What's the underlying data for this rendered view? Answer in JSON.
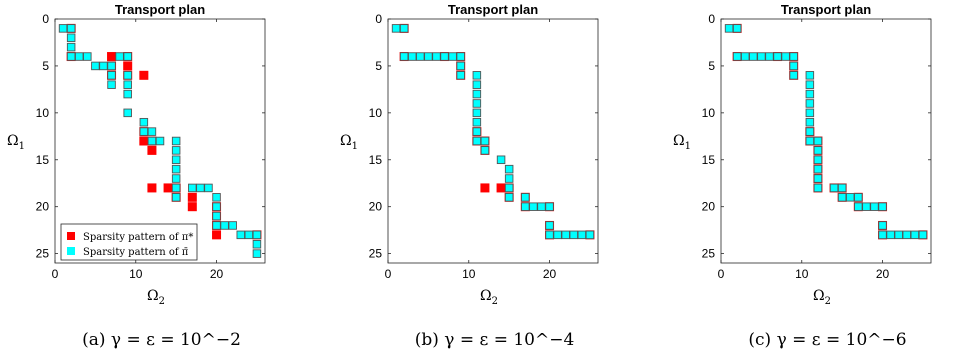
{
  "chart_data": [
    {
      "type": "scatter",
      "title": "Transport plan",
      "xlabel": "Ω",
      "xlabel_sub": "2",
      "ylabel": "Ω",
      "ylabel_sub": "1",
      "xlim": [
        0,
        26
      ],
      "ylim": [
        0,
        26
      ],
      "y_reversed": true,
      "xticks": [
        "0",
        "10",
        "20"
      ],
      "yticks": [
        "0",
        "5",
        "10",
        "15",
        "20",
        "25"
      ],
      "grid": false,
      "legend": {
        "position": "bottom-left",
        "items": [
          {
            "label": "Sparsity pattern of π*",
            "color": "#ff0000"
          },
          {
            "label": "Sparsity pattern of π̄",
            "color": "#00ffff"
          }
        ]
      },
      "series": [
        {
          "name": "Sparsity pattern of π*",
          "color": "#ff0000",
          "points": [
            [
              2,
              1
            ],
            [
              2,
              4
            ],
            [
              7,
              4
            ],
            [
              9,
              4
            ],
            [
              7,
              5
            ],
            [
              9,
              5
            ],
            [
              7,
              6
            ],
            [
              9,
              6
            ],
            [
              11,
              6
            ],
            [
              11,
              12
            ],
            [
              11,
              13
            ],
            [
              12,
              13
            ],
            [
              12,
              14
            ],
            [
              12,
              18
            ],
            [
              14,
              18
            ],
            [
              15,
              18
            ],
            [
              15,
              19
            ],
            [
              17,
              19
            ],
            [
              17,
              20
            ],
            [
              20,
              20
            ],
            [
              20,
              21
            ],
            [
              20,
              22
            ],
            [
              20,
              23
            ],
            [
              25,
              23
            ]
          ]
        },
        {
          "name": "Sparsity pattern of π̄",
          "color": "#00ffff",
          "points": [
            [
              1,
              1
            ],
            [
              2,
              1
            ],
            [
              2,
              2
            ],
            [
              2,
              3
            ],
            [
              2,
              4
            ],
            [
              3,
              4
            ],
            [
              4,
              4
            ],
            [
              5,
              5
            ],
            [
              6,
              5
            ],
            [
              7,
              5
            ],
            [
              7,
              6
            ],
            [
              7,
              7
            ],
            [
              8,
              4
            ],
            [
              9,
              4
            ],
            [
              9,
              6
            ],
            [
              9,
              7
            ],
            [
              9,
              8
            ],
            [
              9,
              10
            ],
            [
              11,
              11
            ],
            [
              11,
              12
            ],
            [
              12,
              12
            ],
            [
              12,
              13
            ],
            [
              13,
              13
            ],
            [
              15,
              13
            ],
            [
              15,
              14
            ],
            [
              15,
              15
            ],
            [
              15,
              16
            ],
            [
              15,
              17
            ],
            [
              15,
              18
            ],
            [
              15,
              19
            ],
            [
              17,
              18
            ],
            [
              18,
              18
            ],
            [
              19,
              18
            ],
            [
              20,
              19
            ],
            [
              20,
              20
            ],
            [
              20,
              21
            ],
            [
              20,
              22
            ],
            [
              21,
              22
            ],
            [
              22,
              22
            ],
            [
              23,
              23
            ],
            [
              24,
              23
            ],
            [
              25,
              23
            ],
            [
              25,
              24
            ],
            [
              25,
              25
            ]
          ]
        }
      ],
      "caption": "(a) γ = ε = 10^−2"
    },
    {
      "type": "scatter",
      "title": "Transport plan",
      "xlabel": "Ω",
      "xlabel_sub": "2",
      "ylabel": "Ω",
      "ylabel_sub": "1",
      "xlim": [
        0,
        26
      ],
      "ylim": [
        0,
        26
      ],
      "y_reversed": true,
      "xticks": [
        "0",
        "10",
        "20"
      ],
      "yticks": [
        "0",
        "5",
        "10",
        "15",
        "20",
        "25"
      ],
      "grid": false,
      "series": [
        {
          "name": "Sparsity pattern of π*",
          "color": "#ff0000",
          "points": [
            [
              2,
              1
            ],
            [
              2,
              4
            ],
            [
              7,
              4
            ],
            [
              9,
              4
            ],
            [
              9,
              5
            ],
            [
              9,
              6
            ],
            [
              11,
              12
            ],
            [
              11,
              13
            ],
            [
              12,
              13
            ],
            [
              12,
              14
            ],
            [
              12,
              18
            ],
            [
              14,
              18
            ],
            [
              15,
              18
            ],
            [
              15,
              19
            ],
            [
              17,
              19
            ],
            [
              17,
              20
            ],
            [
              20,
              20
            ],
            [
              20,
              22
            ],
            [
              20,
              23
            ],
            [
              25,
              23
            ]
          ]
        },
        {
          "name": "Sparsity pattern of π̄",
          "color": "#00ffff",
          "points": [
            [
              1,
              1
            ],
            [
              2,
              1
            ],
            [
              2,
              4
            ],
            [
              3,
              4
            ],
            [
              4,
              4
            ],
            [
              5,
              4
            ],
            [
              6,
              4
            ],
            [
              7,
              4
            ],
            [
              8,
              4
            ],
            [
              9,
              4
            ],
            [
              9,
              5
            ],
            [
              9,
              6
            ],
            [
              11,
              6
            ],
            [
              11,
              7
            ],
            [
              11,
              8
            ],
            [
              11,
              9
            ],
            [
              11,
              10
            ],
            [
              11,
              11
            ],
            [
              11,
              12
            ],
            [
              11,
              13
            ],
            [
              12,
              13
            ],
            [
              12,
              14
            ],
            [
              14,
              15
            ],
            [
              15,
              16
            ],
            [
              15,
              17
            ],
            [
              15,
              18
            ],
            [
              15,
              19
            ],
            [
              17,
              19
            ],
            [
              17,
              20
            ],
            [
              18,
              20
            ],
            [
              19,
              20
            ],
            [
              20,
              20
            ],
            [
              20,
              22
            ],
            [
              20,
              23
            ],
            [
              21,
              23
            ],
            [
              22,
              23
            ],
            [
              23,
              23
            ],
            [
              24,
              23
            ],
            [
              25,
              23
            ]
          ]
        }
      ],
      "caption": "(b) γ = ε = 10^−4"
    },
    {
      "type": "scatter",
      "title": "Transport plan",
      "xlabel": "Ω",
      "xlabel_sub": "2",
      "ylabel": "Ω",
      "ylabel_sub": "1",
      "xlim": [
        0,
        26
      ],
      "ylim": [
        0,
        26
      ],
      "y_reversed": true,
      "xticks": [
        "0",
        "10",
        "20"
      ],
      "yticks": [
        "0",
        "5",
        "10",
        "15",
        "20",
        "25"
      ],
      "grid": false,
      "series": [
        {
          "name": "Sparsity pattern of π*",
          "color": "#ff0000",
          "points": [
            [
              2,
              1
            ],
            [
              2,
              4
            ],
            [
              7,
              4
            ],
            [
              9,
              4
            ],
            [
              9,
              5
            ],
            [
              9,
              6
            ],
            [
              11,
              12
            ],
            [
              11,
              13
            ],
            [
              12,
              13
            ],
            [
              12,
              14
            ],
            [
              12,
              15
            ],
            [
              12,
              16
            ],
            [
              12,
              17
            ],
            [
              12,
              18
            ],
            [
              14,
              18
            ],
            [
              15,
              18
            ],
            [
              15,
              19
            ],
            [
              17,
              19
            ],
            [
              17,
              20
            ],
            [
              20,
              20
            ],
            [
              20,
              22
            ],
            [
              20,
              23
            ],
            [
              25,
              23
            ]
          ]
        },
        {
          "name": "Sparsity pattern of π̄",
          "color": "#00ffff",
          "points": [
            [
              1,
              1
            ],
            [
              2,
              1
            ],
            [
              2,
              4
            ],
            [
              3,
              4
            ],
            [
              4,
              4
            ],
            [
              5,
              4
            ],
            [
              6,
              4
            ],
            [
              7,
              4
            ],
            [
              8,
              4
            ],
            [
              9,
              4
            ],
            [
              9,
              5
            ],
            [
              9,
              6
            ],
            [
              11,
              6
            ],
            [
              11,
              7
            ],
            [
              11,
              8
            ],
            [
              11,
              9
            ],
            [
              11,
              10
            ],
            [
              11,
              11
            ],
            [
              11,
              12
            ],
            [
              11,
              13
            ],
            [
              12,
              13
            ],
            [
              12,
              14
            ],
            [
              12,
              15
            ],
            [
              12,
              16
            ],
            [
              12,
              17
            ],
            [
              12,
              18
            ],
            [
              14,
              18
            ],
            [
              15,
              18
            ],
            [
              15,
              19
            ],
            [
              16,
              19
            ],
            [
              17,
              19
            ],
            [
              17,
              20
            ],
            [
              18,
              20
            ],
            [
              19,
              20
            ],
            [
              20,
              20
            ],
            [
              20,
              22
            ],
            [
              20,
              23
            ],
            [
              21,
              23
            ],
            [
              22,
              23
            ],
            [
              23,
              23
            ],
            [
              24,
              23
            ],
            [
              25,
              23
            ]
          ]
        }
      ],
      "caption": "(c) γ = ε = 10^−6"
    }
  ]
}
